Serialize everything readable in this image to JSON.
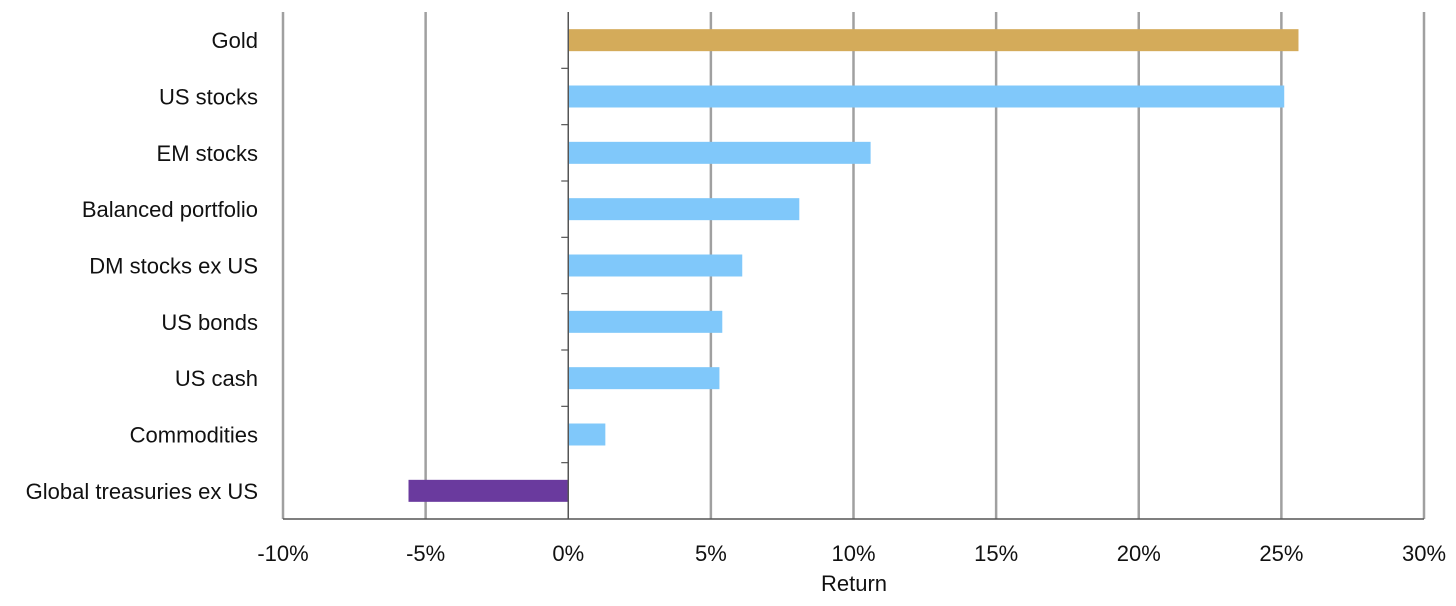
{
  "chart_data": {
    "type": "bar",
    "orientation": "horizontal",
    "categories": [
      "Gold",
      "US stocks",
      "EM stocks",
      "Balanced portfolio",
      "DM stocks ex US",
      "US bonds",
      "US cash",
      "Commodities",
      "Global treasuries ex US"
    ],
    "values": [
      25.6,
      25.1,
      10.6,
      8.1,
      6.1,
      5.4,
      5.3,
      1.3,
      -5.6
    ],
    "bar_colors": [
      "#d4ab5a",
      "#80c8fa",
      "#80c8fa",
      "#80c8fa",
      "#80c8fa",
      "#80c8fa",
      "#80c8fa",
      "#80c8fa",
      "#6a3a9e"
    ],
    "xlabel": "Return",
    "ylabel": "",
    "xlim": [
      -10,
      30
    ],
    "xticks": [
      -10,
      -5,
      0,
      5,
      10,
      15,
      20,
      25,
      30
    ],
    "xtick_labels": [
      "-10%",
      "-5%",
      "0%",
      "5%",
      "10%",
      "15%",
      "20%",
      "25%",
      "30%"
    ],
    "grid": "vertical",
    "gridline_color": "#a0a0a0",
    "axis_color": "#555555",
    "legend": "none"
  }
}
